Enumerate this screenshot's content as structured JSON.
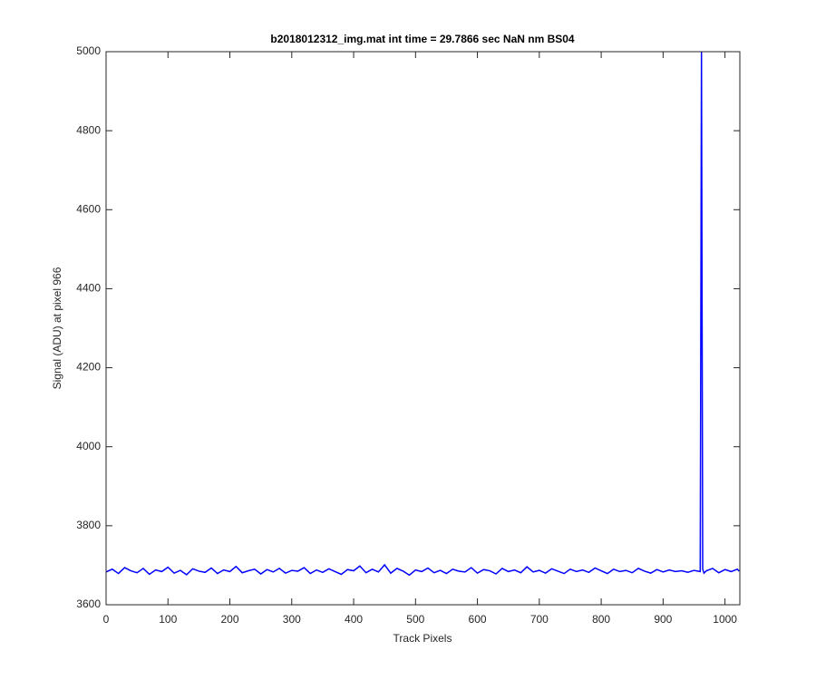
{
  "chart_data": {
    "type": "line",
    "title": "b2018012312_img.mat int time = 29.7866 sec  NaN nm BS04",
    "xlabel": "Track Pixels",
    "ylabel": "Signal (ADU) at pixel 966",
    "x": [
      0,
      10,
      20,
      30,
      40,
      50,
      60,
      70,
      80,
      90,
      100,
      110,
      120,
      130,
      140,
      150,
      160,
      170,
      180,
      190,
      200,
      210,
      220,
      230,
      240,
      250,
      260,
      270,
      280,
      290,
      300,
      310,
      320,
      330,
      340,
      350,
      360,
      370,
      380,
      390,
      400,
      410,
      420,
      430,
      440,
      450,
      460,
      470,
      480,
      490,
      500,
      510,
      520,
      530,
      540,
      550,
      560,
      570,
      580,
      590,
      600,
      610,
      620,
      630,
      640,
      650,
      660,
      670,
      680,
      690,
      700,
      710,
      720,
      730,
      740,
      750,
      760,
      770,
      780,
      790,
      800,
      810,
      820,
      830,
      840,
      850,
      860,
      870,
      880,
      890,
      900,
      910,
      920,
      930,
      940,
      950,
      960,
      962,
      964,
      966,
      970,
      980,
      990,
      1000,
      1010,
      1020,
      1023
    ],
    "series": [
      {
        "color": "#0000ff",
        "values": [
          3683,
          3690,
          3679,
          3694,
          3686,
          3681,
          3692,
          3677,
          3688,
          3684,
          3695,
          3680,
          3687,
          3676,
          3691,
          3685,
          3682,
          3693,
          3679,
          3688,
          3684,
          3697,
          3681,
          3686,
          3690,
          3678,
          3689,
          3683,
          3692,
          3680,
          3687,
          3685,
          3694,
          3679,
          3688,
          3682,
          3691,
          3684,
          3677,
          3689,
          3686,
          3698,
          3681,
          3690,
          3683,
          3701,
          3680,
          3692,
          3685,
          3675,
          3688,
          3684,
          3693,
          3681,
          3687,
          3679,
          3690,
          3685,
          3683,
          3694,
          3680,
          3689,
          3686,
          3678,
          3692,
          3684,
          3688,
          3681,
          3696,
          3683,
          3687,
          3680,
          3691,
          3685,
          3679,
          3690,
          3684,
          3688,
          3682,
          3693,
          3686,
          3679,
          3690,
          3684,
          3687,
          3681,
          3692,
          3685,
          3680,
          3689,
          3683,
          3688,
          3684,
          3686,
          3682,
          3687,
          3684,
          5000,
          3690,
          3680,
          3686,
          3692,
          3681,
          3689,
          3684,
          3690,
          3685
        ]
      }
    ],
    "xlim": [
      0,
      1024
    ],
    "xticks": [
      0,
      100,
      200,
      300,
      400,
      500,
      600,
      700,
      800,
      900,
      1000
    ],
    "ylim": [
      3600,
      5000
    ],
    "yticks": [
      3600,
      3800,
      4000,
      4200,
      4400,
      4600,
      4800,
      5000
    ]
  }
}
